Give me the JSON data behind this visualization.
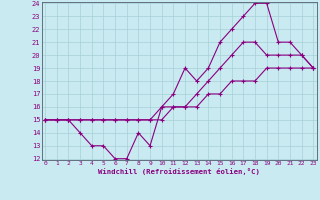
{
  "xlabel": "Windchill (Refroidissement éolien,°C)",
  "bg_color": "#c8eaf0",
  "line_color": "#8b0080",
  "grid_color": "#a8cfd8",
  "xmin": 0,
  "xmax": 23,
  "ymin": 12,
  "ymax": 24,
  "xticks": [
    0,
    1,
    2,
    3,
    4,
    5,
    6,
    7,
    8,
    9,
    10,
    11,
    12,
    13,
    14,
    15,
    16,
    17,
    18,
    19,
    20,
    21,
    22,
    23
  ],
  "yticks": [
    12,
    13,
    14,
    15,
    16,
    17,
    18,
    19,
    20,
    21,
    22,
    23,
    24
  ],
  "line1_x": [
    0,
    1,
    2,
    3,
    4,
    5,
    6,
    7,
    8,
    9,
    10,
    11,
    12,
    13,
    14,
    15,
    16,
    17,
    18,
    19,
    20,
    21,
    22,
    23
  ],
  "line1_y": [
    15,
    15,
    15,
    14,
    13,
    13,
    12,
    12,
    14,
    13,
    16,
    16,
    16,
    17,
    18,
    19,
    20,
    21,
    21,
    20,
    20,
    20,
    20,
    19
  ],
  "line2_x": [
    0,
    1,
    2,
    3,
    4,
    5,
    6,
    7,
    8,
    9,
    10,
    11,
    12,
    13,
    14,
    15,
    16,
    17,
    18,
    19,
    20,
    21,
    22,
    23
  ],
  "line2_y": [
    15,
    15,
    15,
    15,
    15,
    15,
    15,
    15,
    15,
    15,
    15,
    16,
    16,
    16,
    17,
    17,
    18,
    18,
    18,
    19,
    19,
    19,
    19,
    19
  ],
  "line3_x": [
    0,
    1,
    2,
    3,
    4,
    5,
    6,
    7,
    8,
    9,
    10,
    11,
    12,
    13,
    14,
    15,
    16,
    17,
    18,
    19,
    20,
    21,
    22,
    23
  ],
  "line3_y": [
    15,
    15,
    15,
    15,
    15,
    15,
    15,
    15,
    15,
    15,
    16,
    17,
    19,
    18,
    19,
    21,
    22,
    23,
    24,
    24,
    21,
    21,
    20,
    19
  ]
}
